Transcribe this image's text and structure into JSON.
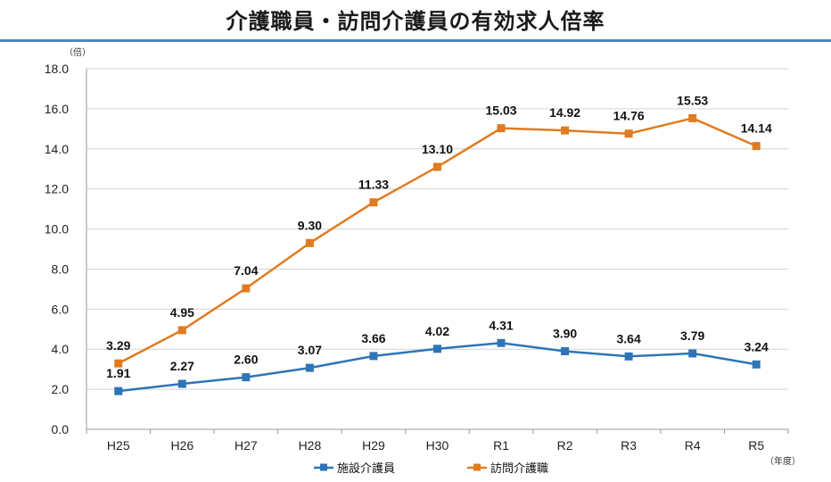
{
  "title": "介護職員・訪問介護員の有効求人倍率",
  "chart_data": {
    "type": "line",
    "ylabel": "（倍）",
    "xlabel": "（年度）",
    "ylim": [
      0,
      18
    ],
    "yticks": [
      "0.0",
      "2.0",
      "4.0",
      "6.0",
      "8.0",
      "10.0",
      "12.0",
      "14.0",
      "16.0",
      "18.0"
    ],
    "categories": [
      "H25",
      "H26",
      "H27",
      "H28",
      "H29",
      "H30",
      "R1",
      "R2",
      "R3",
      "R4",
      "R5"
    ],
    "grid": true,
    "legend_position": "bottom-center",
    "series": [
      {
        "name": "施設介護員",
        "color": "#2e75b6",
        "values": [
          1.91,
          2.27,
          2.6,
          3.07,
          3.66,
          4.02,
          4.31,
          3.9,
          3.64,
          3.79,
          3.24
        ],
        "labels": [
          "1.91",
          "2.27",
          "2.60",
          "3.07",
          "3.66",
          "4.02",
          "4.31",
          "3.90",
          "3.64",
          "3.79",
          "3.24"
        ]
      },
      {
        "name": "訪問介護職",
        "color": "#e07b20",
        "values": [
          3.29,
          4.95,
          7.04,
          9.3,
          11.33,
          13.1,
          15.03,
          14.92,
          14.76,
          15.53,
          14.14
        ],
        "labels": [
          "3.29",
          "4.95",
          "7.04",
          "9.30",
          "11.33",
          "13.10",
          "15.03",
          "14.92",
          "14.76",
          "15.53",
          "14.14"
        ]
      }
    ]
  }
}
